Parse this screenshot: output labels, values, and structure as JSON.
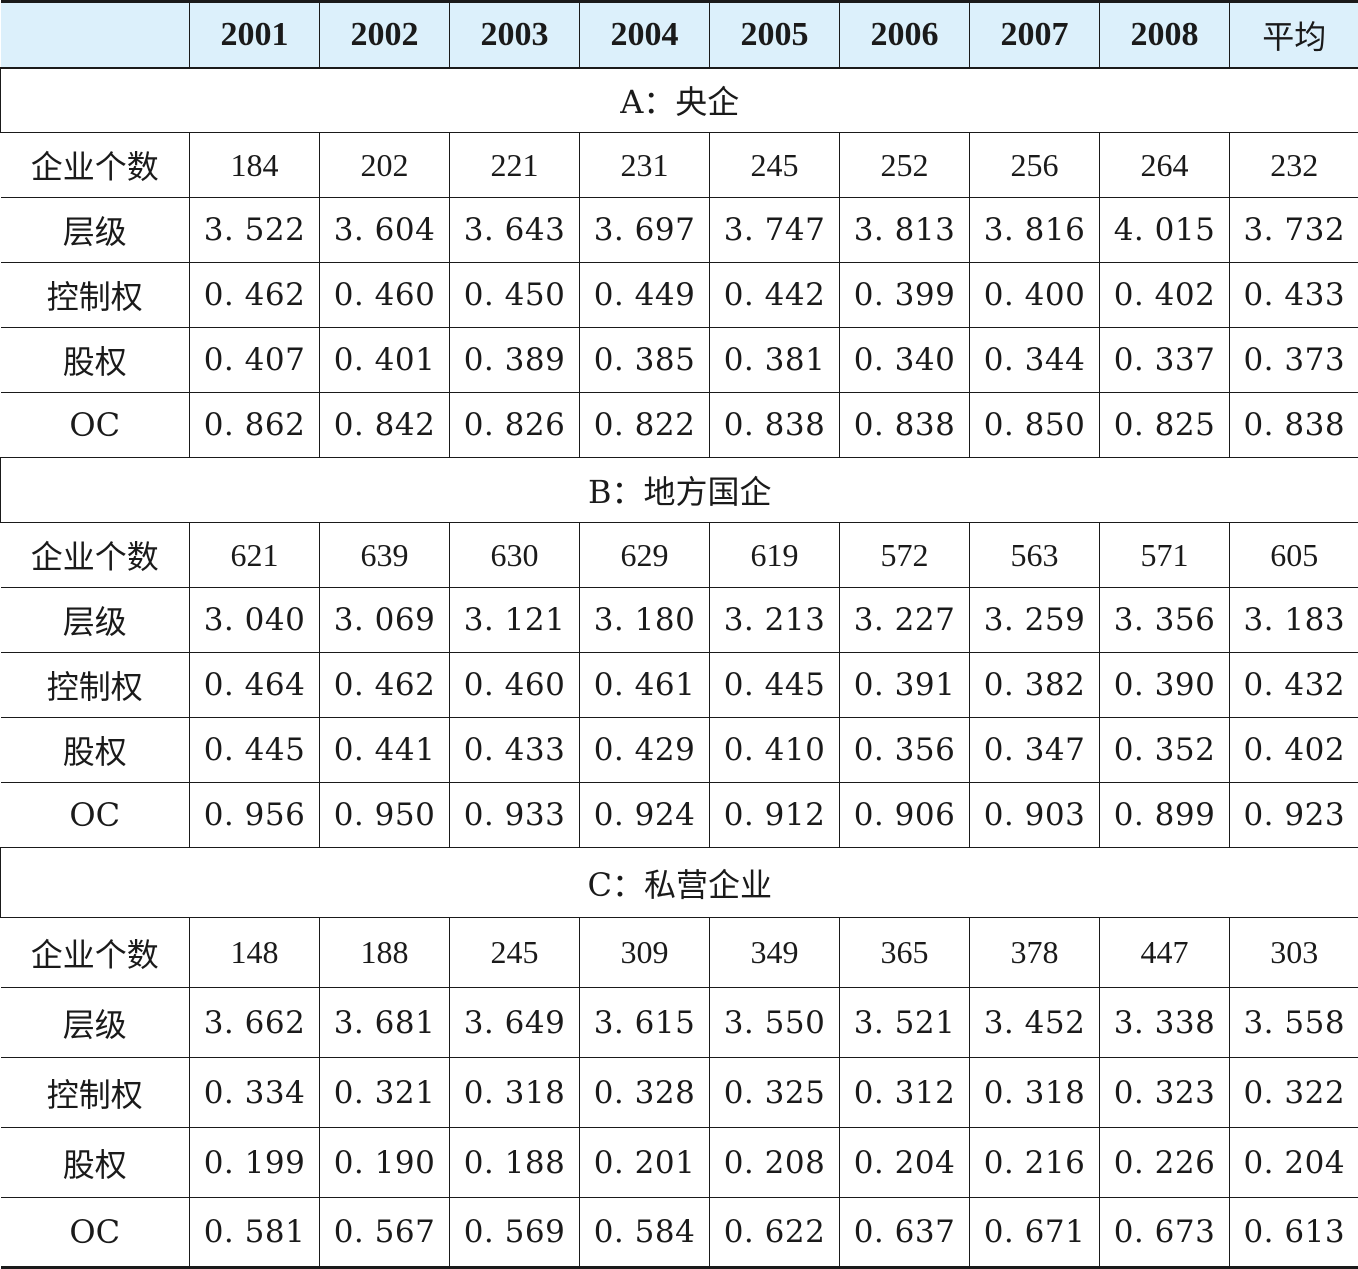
{
  "header": {
    "corner": "",
    "years": [
      "2001",
      "2002",
      "2003",
      "2004",
      "2005",
      "2006",
      "2007",
      "2008"
    ],
    "average": "平均"
  },
  "sections": [
    {
      "title": "A：央企",
      "rows": [
        {
          "label": "企业个数",
          "values": [
            "184",
            "202",
            "221",
            "231",
            "245",
            "252",
            "256",
            "264",
            "232"
          ]
        },
        {
          "label": "层级",
          "values": [
            "3. 522",
            "3. 604",
            "3. 643",
            "3. 697",
            "3. 747",
            "3. 813",
            "3. 816",
            "4. 015",
            "3. 732"
          ]
        },
        {
          "label": "控制权",
          "values": [
            "0. 462",
            "0. 460",
            "0. 450",
            "0. 449",
            "0. 442",
            "0. 399",
            "0. 400",
            "0. 402",
            "0. 433"
          ]
        },
        {
          "label": "股权",
          "values": [
            "0. 407",
            "0. 401",
            "0. 389",
            "0. 385",
            "0. 381",
            "0. 340",
            "0. 344",
            "0. 337",
            "0. 373"
          ]
        },
        {
          "label": "OC",
          "values": [
            "0. 862",
            "0. 842",
            "0. 826",
            "0. 822",
            "0. 838",
            "0. 838",
            "0. 850",
            "0. 825",
            "0. 838"
          ]
        }
      ]
    },
    {
      "title": "B：地方国企",
      "rows": [
        {
          "label": "企业个数",
          "values": [
            "621",
            "639",
            "630",
            "629",
            "619",
            "572",
            "563",
            "571",
            "605"
          ]
        },
        {
          "label": "层级",
          "values": [
            "3. 040",
            "3. 069",
            "3. 121",
            "3. 180",
            "3. 213",
            "3. 227",
            "3. 259",
            "3. 356",
            "3. 183"
          ]
        },
        {
          "label": "控制权",
          "values": [
            "0. 464",
            "0. 462",
            "0. 460",
            "0. 461",
            "0. 445",
            "0. 391",
            "0. 382",
            "0. 390",
            "0. 432"
          ]
        },
        {
          "label": "股权",
          "values": [
            "0. 445",
            "0. 441",
            "0. 433",
            "0. 429",
            "0. 410",
            "0. 356",
            "0. 347",
            "0. 352",
            "0. 402"
          ]
        },
        {
          "label": "OC",
          "values": [
            "0. 956",
            "0. 950",
            "0. 933",
            "0. 924",
            "0. 912",
            "0. 906",
            "0. 903",
            "0. 899",
            "0. 923"
          ]
        }
      ]
    },
    {
      "title": "C：私营企业",
      "rows": [
        {
          "label": "企业个数",
          "values": [
            "148",
            "188",
            "245",
            "309",
            "349",
            "365",
            "378",
            "447",
            "303"
          ]
        },
        {
          "label": "层级",
          "values": [
            "3. 662",
            "3. 681",
            "3. 649",
            "3. 615",
            "3. 550",
            "3. 521",
            "3. 452",
            "3. 338",
            "3. 558"
          ]
        },
        {
          "label": "控制权",
          "values": [
            "0. 334",
            "0. 321",
            "0. 318",
            "0. 328",
            "0. 325",
            "0. 312",
            "0. 318",
            "0. 323",
            "0. 322"
          ]
        },
        {
          "label": "股权",
          "values": [
            "0. 199",
            "0. 190",
            "0. 188",
            "0. 201",
            "0. 208",
            "0. 204",
            "0. 216",
            "0. 226",
            "0. 204"
          ]
        },
        {
          "label": "OC",
          "values": [
            "0. 581",
            "0. 567",
            "0. 569",
            "0. 584",
            "0. 622",
            "0. 637",
            "0. 671",
            "0. 673",
            "0. 613"
          ]
        }
      ]
    }
  ]
}
